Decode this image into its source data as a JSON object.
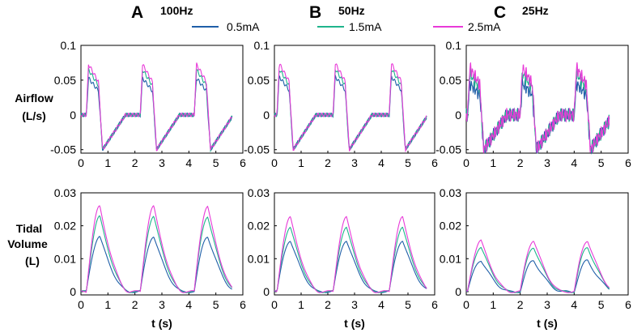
{
  "figure": {
    "panels": [
      {
        "letter": "A",
        "freq": "100Hz"
      },
      {
        "letter": "B",
        "freq": "50Hz"
      },
      {
        "letter": "C",
        "freq": "25Hz"
      }
    ],
    "legend": [
      {
        "label": "0.5mA",
        "color": "#1f5fa8"
      },
      {
        "label": "1.5mA",
        "color": "#1fb48c"
      },
      {
        "label": "2.5mA",
        "color": "#e83ad8"
      }
    ],
    "row_labels": {
      "airflow": [
        "Airflow",
        "(L/s)"
      ],
      "volume": [
        "Tidal",
        "Volume",
        "(L)"
      ]
    }
  },
  "chart_data": [
    {
      "type": "line",
      "id": "A-airflow",
      "xlabel": "",
      "ylabel": "Airflow (L/s)",
      "xlim": [
        0,
        6
      ],
      "ylim": [
        -0.055,
        0.1
      ],
      "xticks": [
        "0",
        "1",
        "2",
        "3",
        "4",
        "5",
        "6"
      ],
      "yticks": [
        {
          "v": 0.1,
          "t": "0.1"
        },
        {
          "v": 0.05,
          "t": "0.05"
        },
        {
          "v": 0,
          "t": "0"
        },
        {
          "v": -0.05,
          "t": "-0.05"
        }
      ],
      "breaths": [
        0.2,
        2.2,
        4.2
      ],
      "tmax": 5.6,
      "series": [
        {
          "name": "0.5mA",
          "peak": 0.053
        },
        {
          "name": "1.5mA",
          "peak": 0.065
        },
        {
          "name": "2.5mA",
          "peak": 0.073
        }
      ]
    },
    {
      "type": "line",
      "id": "B-airflow",
      "xlabel": "",
      "ylabel": "Airflow (L/s)",
      "xlim": [
        0,
        6
      ],
      "ylim": [
        -0.055,
        0.1
      ],
      "xticks": [
        "0",
        "1",
        "2",
        "3",
        "4",
        "5",
        "6"
      ],
      "yticks": [
        {
          "v": 0.1,
          "t": "0.1"
        },
        {
          "v": 0.05,
          "t": "0.05"
        },
        {
          "v": 0,
          "t": "0"
        },
        {
          "v": -0.05,
          "t": "-0.05"
        }
      ],
      "breaths": [
        0.1,
        2.2,
        4.3
      ],
      "tmax": 5.7,
      "series": [
        {
          "name": "0.5mA",
          "peak": 0.055
        },
        {
          "name": "1.5mA",
          "peak": 0.066
        },
        {
          "name": "2.5mA",
          "peak": 0.074
        }
      ]
    },
    {
      "type": "line",
      "id": "C-airflow",
      "xlabel": "",
      "ylabel": "Airflow (L/s)",
      "xlim": [
        0,
        6
      ],
      "ylim": [
        -0.055,
        0.1
      ],
      "xticks": [
        "0",
        "1",
        "2",
        "3",
        "4",
        "5",
        "6"
      ],
      "yticks": [
        {
          "v": 0.1,
          "t": "0.1"
        },
        {
          "v": 0.05,
          "t": "0.05"
        },
        {
          "v": 0,
          "t": "0"
        },
        {
          "v": -0.05,
          "t": "-0.05"
        }
      ],
      "breaths": [
        0.05,
        2.0,
        4.0
      ],
      "tmax": 5.3,
      "series": [
        {
          "name": "0.5mA",
          "peak": 0.045
        },
        {
          "name": "1.5mA",
          "peak": 0.06
        },
        {
          "name": "2.5mA",
          "peak": 0.068
        }
      ]
    },
    {
      "type": "line",
      "id": "A-volume",
      "xlabel": "t (s)",
      "ylabel": "Tidal Volume (L)",
      "xlim": [
        0,
        6
      ],
      "ylim": [
        -0.001,
        0.03
      ],
      "xticks": [
        "0",
        "1",
        "2",
        "3",
        "4",
        "5",
        "6"
      ],
      "yticks": [
        {
          "v": 0.03,
          "t": "0.03"
        },
        {
          "v": 0.02,
          "t": "0.02"
        },
        {
          "v": 0.01,
          "t": "0.01"
        },
        {
          "v": 0,
          "t": "0"
        }
      ],
      "breaths": [
        0.2,
        2.2,
        4.2
      ],
      "tmax": 5.6,
      "series": [
        {
          "name": "0.5mA",
          "peak": 0.0168
        },
        {
          "name": "1.5mA",
          "peak": 0.0228
        },
        {
          "name": "2.5mA",
          "peak": 0.0258
        }
      ]
    },
    {
      "type": "line",
      "id": "B-volume",
      "xlabel": "t (s)",
      "ylabel": "Tidal Volume (L)",
      "xlim": [
        0,
        6
      ],
      "ylim": [
        -0.001,
        0.03
      ],
      "xticks": [
        "0",
        "1",
        "2",
        "3",
        "4",
        "5",
        "6"
      ],
      "yticks": [
        {
          "v": 0.03,
          "t": "0.03"
        },
        {
          "v": 0.02,
          "t": "0.02"
        },
        {
          "v": 0.01,
          "t": "0.01"
        },
        {
          "v": 0,
          "t": "0"
        }
      ],
      "breaths": [
        0.1,
        2.2,
        4.3
      ],
      "tmax": 5.7,
      "series": [
        {
          "name": "0.5mA",
          "peak": 0.0155
        },
        {
          "name": "1.5mA",
          "peak": 0.0195
        },
        {
          "name": "2.5mA",
          "peak": 0.0225
        }
      ]
    },
    {
      "type": "line",
      "id": "C-volume",
      "xlabel": "t (s)",
      "ylabel": "Tidal Volume (L)",
      "xlim": [
        0,
        6
      ],
      "ylim": [
        -0.001,
        0.03
      ],
      "xticks": [
        "0",
        "1",
        "2",
        "3",
        "4",
        "5",
        "6"
      ],
      "yticks": [
        {
          "v": 0.03,
          "t": "0.03"
        },
        {
          "v": 0.02,
          "t": "0.02"
        },
        {
          "v": 0.01,
          "t": "0.01"
        },
        {
          "v": 0,
          "t": "0"
        }
      ],
      "breaths": [
        0.05,
        2.0,
        4.0
      ],
      "tmax": 5.3,
      "series": [
        {
          "name": "0.5mA",
          "peak": 0.0095
        },
        {
          "name": "1.5mA",
          "peak": 0.0135
        },
        {
          "name": "2.5mA",
          "peak": 0.0155
        }
      ]
    }
  ]
}
